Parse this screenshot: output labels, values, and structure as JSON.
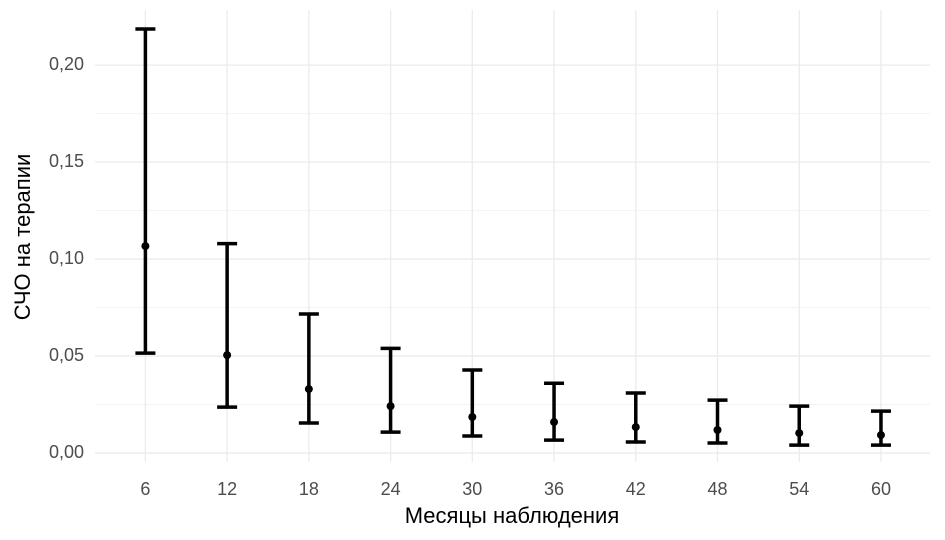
{
  "chart_data": {
    "type": "errorbar",
    "x_label": "Месяцы наблюдения",
    "y_label": "СЧО на терапии",
    "x": [
      6,
      12,
      18,
      24,
      30,
      36,
      42,
      48,
      54,
      60
    ],
    "values": [
      0.1067,
      0.0505,
      0.033,
      0.0242,
      0.0186,
      0.016,
      0.0134,
      0.0119,
      0.0103,
      0.0093
    ],
    "lower": [
      0.0515,
      0.0237,
      0.0155,
      0.0108,
      0.0088,
      0.0067,
      0.0057,
      0.0052,
      0.0041,
      0.0041
    ],
    "upper": [
      0.2186,
      0.108,
      0.0717,
      0.054,
      0.0428,
      0.036,
      0.031,
      0.0273,
      0.0242,
      0.0216
    ],
    "color": "#000000",
    "xlim": [
      2.3,
      63.6
    ],
    "xticks": [
      6,
      12,
      18,
      24,
      30,
      36,
      42,
      48,
      54,
      60
    ],
    "ylim": [
      -0.0046,
      0.2284
    ],
    "yticks": [
      {
        "value": 0,
        "label": "0,00"
      },
      {
        "value": 0.05,
        "label": "0,05"
      },
      {
        "value": 0.1,
        "label": "0,10"
      },
      {
        "value": 0.15,
        "label": "0,15"
      },
      {
        "value": 0.2,
        "label": "0,20"
      }
    ],
    "grid": true
  }
}
